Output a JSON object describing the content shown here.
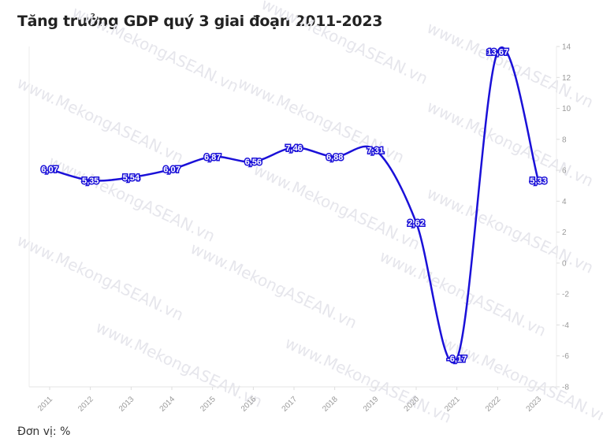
{
  "title": "Tăng trưởng GDP quý 3 giai đoạn 2011-2023",
  "unit_note": "Đơn vị: %",
  "watermark": "www.MekongASEAN.vn",
  "chart_data": {
    "type": "line",
    "title": "Tăng trưởng GDP quý 3 giai đoạn 2011-2023",
    "categories": [
      "2011",
      "2012",
      "2013",
      "2014",
      "2015",
      "2016",
      "2017",
      "2018",
      "2019",
      "2020",
      "2021",
      "2022",
      "2023"
    ],
    "values": [
      6.07,
      5.35,
      5.54,
      6.07,
      6.87,
      6.56,
      7.46,
      6.88,
      7.31,
      2.62,
      -6.17,
      13.67,
      5.33
    ],
    "data_labels": [
      "6,07",
      "5,35",
      "5,54",
      "6,07",
      "6,87",
      "6,56",
      "7,46",
      "6,88",
      "7,31",
      "2,62",
      "-6,17",
      "13,67",
      "5,33"
    ],
    "ylim": [
      -8,
      14
    ],
    "yticks": [
      14,
      12,
      10,
      8,
      6,
      4,
      2,
      0,
      -2,
      -4,
      -6,
      -8
    ],
    "y_axis_side": "right",
    "smooth": true,
    "grid": false,
    "line_color": "#1a10d8"
  }
}
